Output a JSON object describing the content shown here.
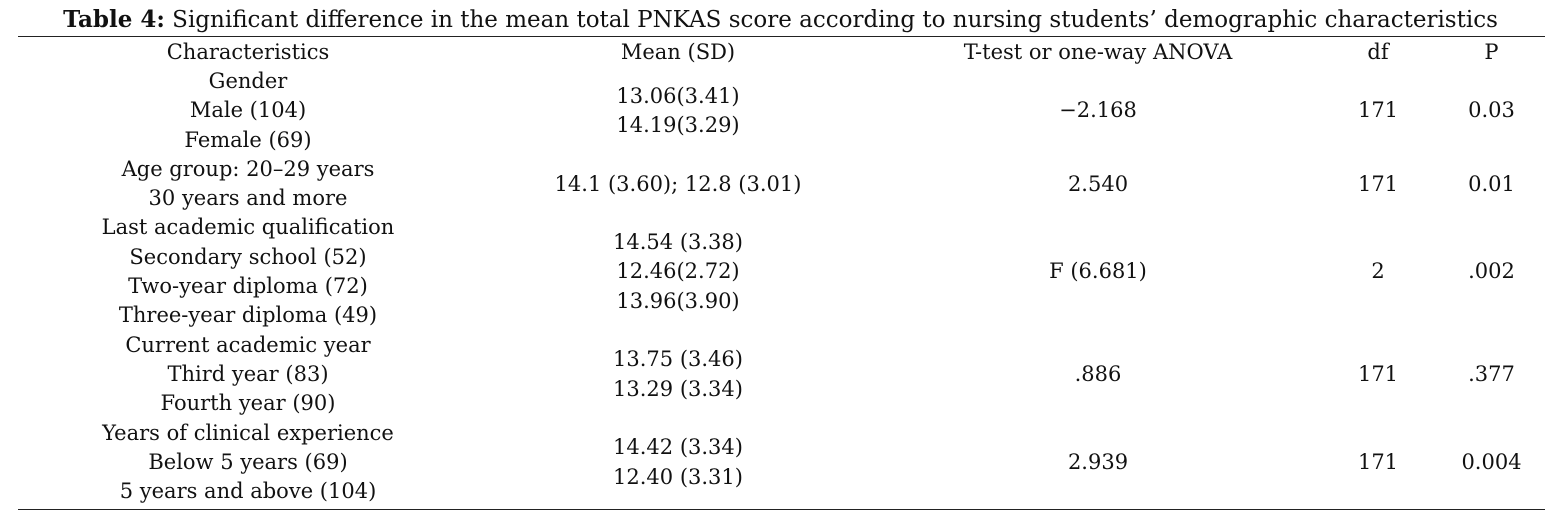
{
  "caption": {
    "label": "Table 4:",
    "text": " Significant difference in the mean total PNKAS score according to nursing students’ demographic characteristics"
  },
  "headers": [
    "Characteristics",
    "Mean (SD)",
    "T-test or one-way ANOVA",
    "df",
    "P"
  ],
  "rows": [
    {
      "characteristics": [
        "Gender",
        "Male (104)",
        "Female (69)"
      ],
      "mean": [
        "13.06(3.41)",
        "14.19(3.29)"
      ],
      "test": "−2.168",
      "df": "171",
      "p": "0.03"
    },
    {
      "characteristics": [
        "Age group: 20–29 years",
        "30 years and more"
      ],
      "mean": [
        "14.1 (3.60); 12.8 (3.01)"
      ],
      "test": "2.540",
      "df": "171",
      "p": "0.01"
    },
    {
      "characteristics": [
        "Last academic qualification",
        "Secondary school (52)",
        "Two-year diploma (72)",
        "Three-year diploma (49)"
      ],
      "mean": [
        "14.54 (3.38)",
        "12.46(2.72)",
        "13.96(3.90)"
      ],
      "test": "F (6.681)",
      "df": "2",
      "p": ".002"
    },
    {
      "characteristics": [
        "Current academic year",
        "Third year (83)",
        "Fourth year (90)"
      ],
      "mean": [
        "13.75 (3.46)",
        "13.29 (3.34)"
      ],
      "test": ".886",
      "df": "171",
      "p": ".377"
    },
    {
      "characteristics": [
        "Years of clinical experience",
        "Below 5 years (69)",
        "5 years and above (104)"
      ],
      "mean": [
        "14.42 (3.34)",
        "12.40 (3.31)"
      ],
      "test": "2.939",
      "df": "171",
      "p": "0.004"
    }
  ]
}
